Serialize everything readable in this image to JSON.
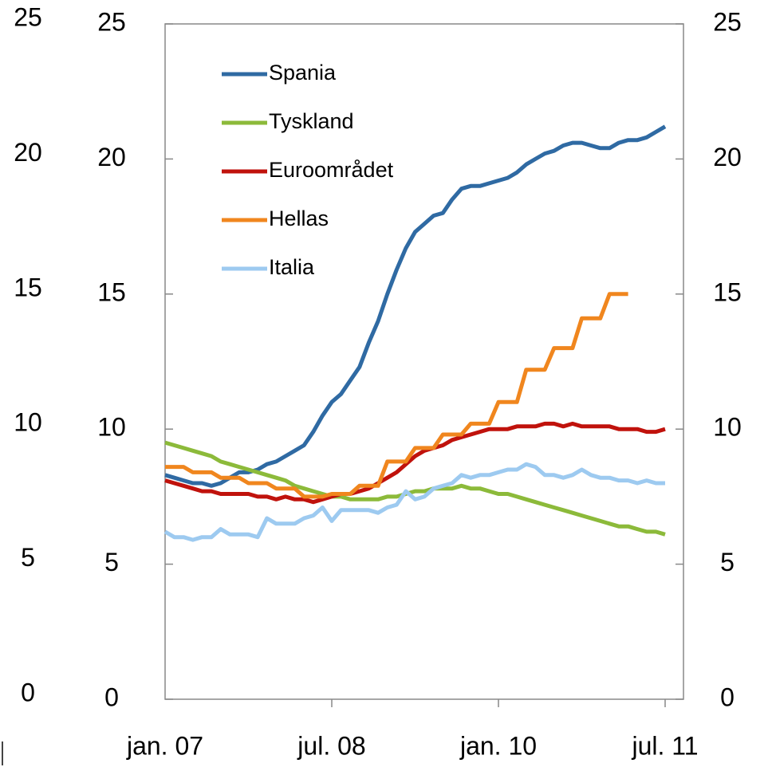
{
  "chart_data": {
    "type": "line",
    "categories": [
      "jan. 07",
      null,
      null,
      null,
      null,
      null,
      null,
      null,
      null,
      null,
      null,
      null,
      null,
      null,
      null,
      null,
      null,
      null,
      "jul. 08",
      null,
      null,
      null,
      null,
      null,
      null,
      null,
      null,
      null,
      null,
      null,
      null,
      null,
      null,
      null,
      null,
      null,
      "jan. 10",
      null,
      null,
      null,
      null,
      null,
      null,
      null,
      null,
      null,
      null,
      null,
      null,
      null,
      null,
      null,
      null,
      null,
      "jul. 11"
    ],
    "series": [
      {
        "name": "Spania",
        "color": "#2f6aa3",
        "values": [
          8.3,
          8.2,
          8.1,
          8.0,
          8.0,
          7.9,
          8.0,
          8.2,
          8.4,
          8.4,
          8.5,
          8.7,
          8.8,
          9.0,
          9.2,
          9.4,
          9.9,
          10.5,
          11.0,
          11.3,
          11.8,
          12.3,
          13.2,
          14.0,
          15.0,
          15.9,
          16.7,
          17.3,
          17.6,
          17.9,
          18.0,
          18.5,
          18.9,
          19.0,
          19.0,
          19.1,
          19.2,
          19.3,
          19.5,
          19.8,
          20.0,
          20.2,
          20.3,
          20.5,
          20.6,
          20.6,
          20.5,
          20.4,
          20.4,
          20.6,
          20.7,
          20.7,
          20.8,
          21.0,
          21.2
        ]
      },
      {
        "name": "Tyskland",
        "color": "#8cba3a",
        "values": [
          9.5,
          9.4,
          9.3,
          9.2,
          9.1,
          9.0,
          8.8,
          8.7,
          8.6,
          8.5,
          8.4,
          8.3,
          8.2,
          8.1,
          7.9,
          7.8,
          7.7,
          7.6,
          7.5,
          7.5,
          7.4,
          7.4,
          7.4,
          7.4,
          7.5,
          7.5,
          7.6,
          7.7,
          7.7,
          7.8,
          7.8,
          7.8,
          7.9,
          7.8,
          7.8,
          7.7,
          7.6,
          7.6,
          7.5,
          7.4,
          7.3,
          7.2,
          7.1,
          7.0,
          6.9,
          6.8,
          6.7,
          6.6,
          6.5,
          6.4,
          6.4,
          6.3,
          6.2,
          6.2,
          6.1
        ]
      },
      {
        "name": "Euroområdet",
        "color": "#c0120c",
        "values": [
          8.1,
          8.0,
          7.9,
          7.8,
          7.7,
          7.7,
          7.6,
          7.6,
          7.6,
          7.6,
          7.5,
          7.5,
          7.4,
          7.5,
          7.4,
          7.4,
          7.3,
          7.4,
          7.5,
          7.6,
          7.6,
          7.7,
          7.8,
          8.0,
          8.2,
          8.4,
          8.7,
          9.0,
          9.2,
          9.3,
          9.4,
          9.6,
          9.7,
          9.8,
          9.9,
          10.0,
          10.0,
          10.0,
          10.1,
          10.1,
          10.1,
          10.2,
          10.2,
          10.1,
          10.2,
          10.1,
          10.1,
          10.1,
          10.1,
          10.0,
          10.0,
          10.0,
          9.9,
          9.9,
          10.0
        ]
      },
      {
        "name": "Hellas",
        "color": "#f0861e",
        "values": [
          8.6,
          8.6,
          8.6,
          8.4,
          8.4,
          8.4,
          8.2,
          8.2,
          8.2,
          8.0,
          8.0,
          8.0,
          7.8,
          7.8,
          7.8,
          7.5,
          7.5,
          7.5,
          7.6,
          7.6,
          7.6,
          7.9,
          7.9,
          7.9,
          8.8,
          8.8,
          8.8,
          9.3,
          9.3,
          9.3,
          9.8,
          9.8,
          9.8,
          10.2,
          10.2,
          10.2,
          11.0,
          11.0,
          11.0,
          12.2,
          12.2,
          12.2,
          13.0,
          13.0,
          13.0,
          14.1,
          14.1,
          14.1,
          15.0,
          15.0,
          15.0,
          null,
          null,
          null,
          null
        ]
      },
      {
        "name": "Italia",
        "color": "#9dcaf0",
        "values": [
          6.2,
          6.0,
          6.0,
          5.9,
          6.0,
          6.0,
          6.3,
          6.1,
          6.1,
          6.1,
          6.0,
          6.7,
          6.5,
          6.5,
          6.5,
          6.7,
          6.8,
          7.1,
          6.6,
          7.0,
          7.0,
          7.0,
          7.0,
          6.9,
          7.1,
          7.2,
          7.7,
          7.4,
          7.5,
          7.8,
          7.9,
          8.0,
          8.3,
          8.2,
          8.3,
          8.3,
          8.4,
          8.5,
          8.5,
          8.7,
          8.6,
          8.3,
          8.3,
          8.2,
          8.3,
          8.5,
          8.3,
          8.2,
          8.2,
          8.1,
          8.1,
          8.0,
          8.1,
          8.0,
          8.0
        ]
      }
    ],
    "ylim": [
      0,
      25
    ],
    "yticks": [
      0,
      5,
      10,
      15,
      20,
      25
    ],
    "y2lim": [
      0,
      25
    ],
    "y2ticks": [
      0,
      5,
      10,
      15,
      20,
      25
    ],
    "legend": "upper left",
    "grid": false
  }
}
